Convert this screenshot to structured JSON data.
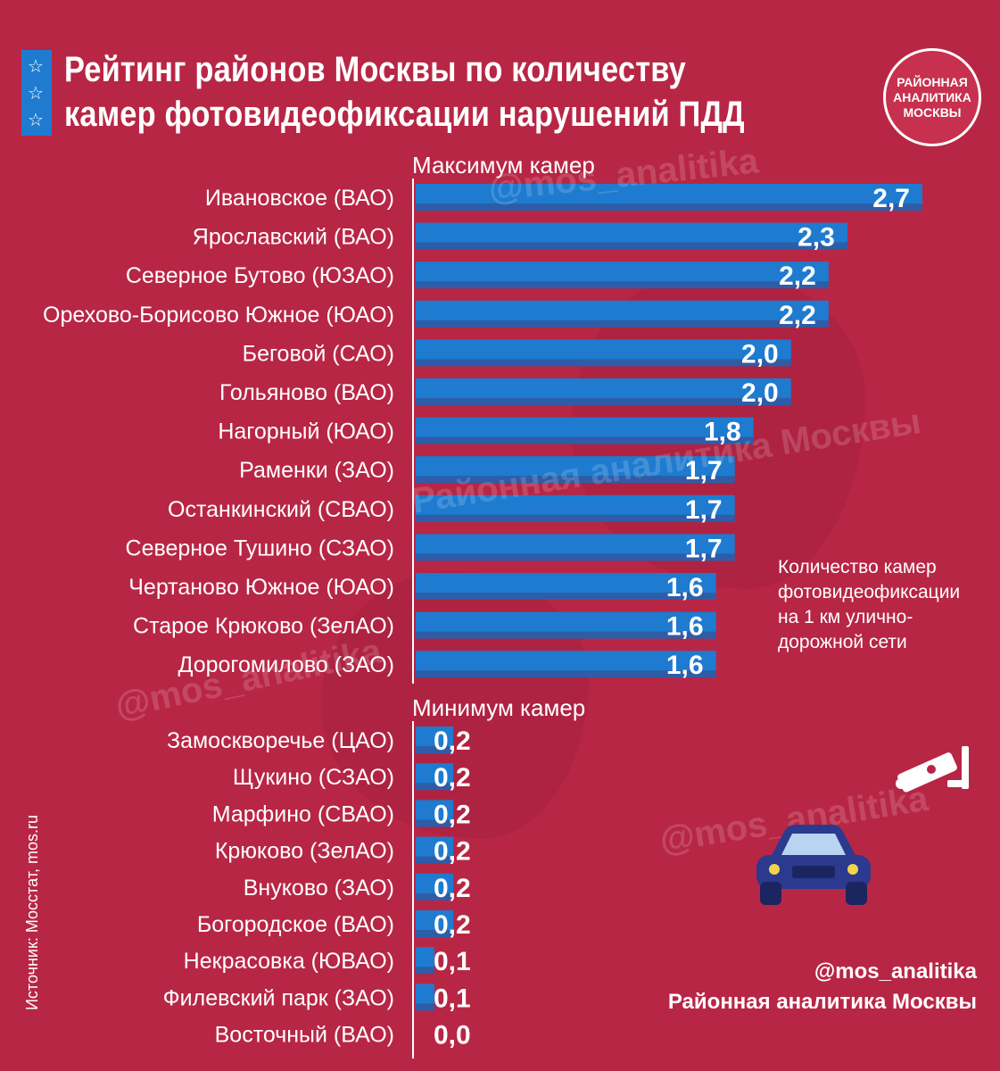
{
  "header": {
    "title_line1": "Рейтинг районов Москвы по количеству",
    "title_line2": "камер фотовидеофиксации нарушений ПДД",
    "star_icon": "star-icon"
  },
  "logo": {
    "line1": "РАЙОННАЯ",
    "line2": "АНАЛИТИКА",
    "line3": "МОСКВЫ"
  },
  "sections": {
    "max_label": "Максимум камер",
    "min_label": "Минимум камер"
  },
  "legend": {
    "text": "Количество камер\nфотовидеофиксации\nна 1 км улично-\nдорожной сети"
  },
  "watermarks": {
    "handle_small": "@mos_analitika",
    "brand_text": "Районная аналитика Москвы"
  },
  "source": "Источник: Мосстат, mos.ru",
  "brand": {
    "handle": "@mos_analitika",
    "name": "Районная аналитика Москвы"
  },
  "colors": {
    "background": "#B82645",
    "bar": "#1E7BD0",
    "bar_shadow": "#2E5DA8",
    "text": "#FFFFFF",
    "car": "#2B3A8F"
  },
  "icons": [
    "traffic-camera-icon",
    "car-icon"
  ],
  "chart_data": {
    "type": "bar",
    "orientation": "horizontal",
    "title": "Рейтинг районов Москвы по количеству камер фотовидеофиксации нарушений ПДД",
    "xlabel": "Количество камер фотовидеофиксации на 1 км улично-дорожной сети",
    "ylabel": "",
    "xlim": [
      0,
      2.7
    ],
    "groups": [
      {
        "name": "Максимум камер",
        "categories": [
          "Ивановское (ВАО)",
          "Ярославский (ВАО)",
          "Северное Бутово (ЮЗАО)",
          "Орехово-Борисово Южное (ЮАО)",
          "Беговой (САО)",
          "Гольяново (ВАО)",
          "Нагорный (ЮАО)",
          "Раменки (ЗАО)",
          "Останкинский (СВАО)",
          "Северное Тушино (СЗАО)",
          "Чертаново Южное (ЮАО)",
          "Старое Крюково (ЗелАО)",
          "Дорогомилово (ЗАО)"
        ],
        "values": [
          2.7,
          2.3,
          2.2,
          2.2,
          2.0,
          2.0,
          1.8,
          1.7,
          1.7,
          1.7,
          1.6,
          1.6,
          1.6
        ],
        "value_labels": [
          "2,7",
          "2,3",
          "2,2",
          "2,2",
          "2,0",
          "2,0",
          "1,8",
          "1,7",
          "1,7",
          "1,7",
          "1,6",
          "1,6",
          "1,6"
        ]
      },
      {
        "name": "Минимум камер",
        "categories": [
          "Замоскворечье (ЦАО)",
          "Щукино (СЗАО)",
          "Марфино (СВАО)",
          "Крюково (ЗелАО)",
          "Внуково (ЗАО)",
          "Богородское (ВАО)",
          "Некрасовка (ЮВАО)",
          "Филевский парк (ЗАО)",
          "Восточный (ВАО)"
        ],
        "values": [
          0.2,
          0.2,
          0.2,
          0.2,
          0.2,
          0.2,
          0.1,
          0.1,
          0.0
        ],
        "value_labels": [
          "0,2",
          "0,2",
          "0,2",
          "0,2",
          "0,2",
          "0,2",
          "0,1",
          "0,1",
          "0,0"
        ]
      }
    ]
  }
}
